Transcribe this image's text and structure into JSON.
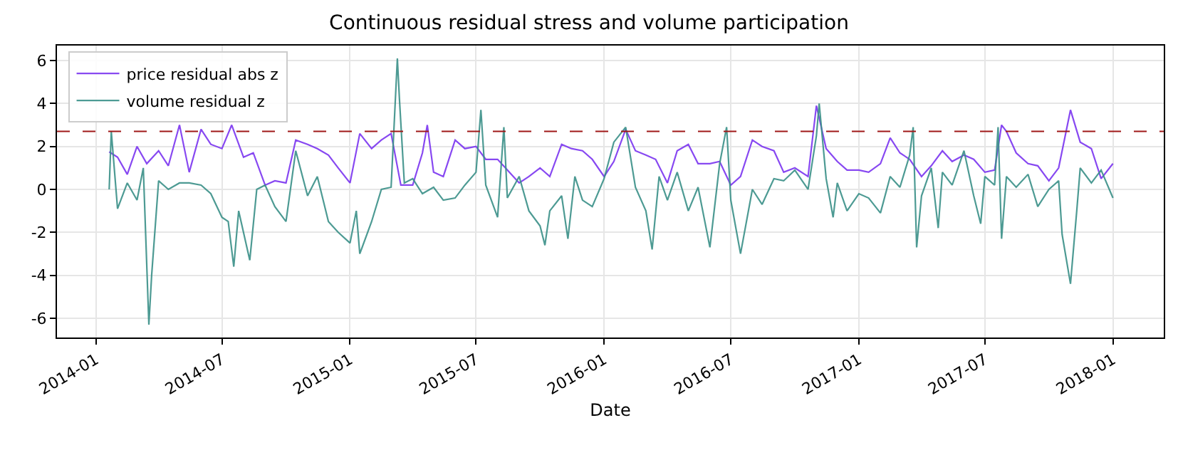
{
  "chart_data": {
    "type": "line",
    "title": "Continuous residual stress and volume participation",
    "xlabel": "Date",
    "xlim": [
      "2013-11-06",
      "2018-03-15"
    ],
    "xticks": [
      {
        "value": "2014-01-01",
        "label": "2014-01"
      },
      {
        "value": "2014-07-01",
        "label": "2014-07"
      },
      {
        "value": "2015-01-01",
        "label": "2015-01"
      },
      {
        "value": "2015-07-01",
        "label": "2015-07"
      },
      {
        "value": "2016-01-01",
        "label": "2016-01"
      },
      {
        "value": "2016-07-01",
        "label": "2016-07"
      },
      {
        "value": "2017-01-01",
        "label": "2017-01"
      },
      {
        "value": "2017-07-01",
        "label": "2017-07"
      },
      {
        "value": "2018-01-01",
        "label": "2018-01"
      }
    ],
    "ylim": [
      -6.9,
      6.7
    ],
    "yticks": [
      -6,
      -4,
      -2,
      0,
      2,
      4,
      6
    ],
    "grid": true,
    "legend": "top left",
    "line_style": "solid",
    "ref_lines": [
      {
        "axis": "y",
        "value": 2.7,
        "color": "#a01818",
        "line_style": "dashed"
      }
    ],
    "series": [
      {
        "name": "price residual abs z",
        "color": "#7b35f0",
        "x": [
          "2014-01-20",
          "2014-02-01",
          "2014-02-15",
          "2014-03-01",
          "2014-03-15",
          "2014-04-01",
          "2014-04-15",
          "2014-05-01",
          "2014-05-15",
          "2014-06-01",
          "2014-06-15",
          "2014-07-01",
          "2014-07-15",
          "2014-08-01",
          "2014-08-15",
          "2014-09-01",
          "2014-09-15",
          "2014-10-01",
          "2014-10-15",
          "2014-11-01",
          "2014-11-15",
          "2014-12-01",
          "2014-12-15",
          "2015-01-01",
          "2015-01-15",
          "2015-02-01",
          "2015-02-15",
          "2015-03-01",
          "2015-03-15",
          "2015-04-01",
          "2015-04-15",
          "2015-04-22",
          "2015-05-01",
          "2015-05-15",
          "2015-06-01",
          "2015-06-15",
          "2015-07-01",
          "2015-07-15",
          "2015-08-01",
          "2015-08-15",
          "2015-09-01",
          "2015-09-15",
          "2015-10-01",
          "2015-10-15",
          "2015-11-01",
          "2015-11-15",
          "2015-12-01",
          "2015-12-15",
          "2016-01-01",
          "2016-01-15",
          "2016-02-01",
          "2016-02-15",
          "2016-03-01",
          "2016-03-15",
          "2016-04-01",
          "2016-04-15",
          "2016-05-01",
          "2016-05-15",
          "2016-06-01",
          "2016-06-15",
          "2016-07-01",
          "2016-07-15",
          "2016-08-01",
          "2016-08-15",
          "2016-09-01",
          "2016-09-15",
          "2016-10-01",
          "2016-10-20",
          "2016-11-01",
          "2016-11-15",
          "2016-12-01",
          "2016-12-15",
          "2017-01-01",
          "2017-01-15",
          "2017-02-01",
          "2017-02-15",
          "2017-03-01",
          "2017-03-15",
          "2017-04-01",
          "2017-04-15",
          "2017-05-01",
          "2017-05-15",
          "2017-06-01",
          "2017-06-15",
          "2017-07-01",
          "2017-07-15",
          "2017-07-25",
          "2017-08-01",
          "2017-08-15",
          "2017-09-01",
          "2017-09-15",
          "2017-10-01",
          "2017-10-15",
          "2017-11-01",
          "2017-11-15",
          "2017-12-01",
          "2017-12-15",
          "2018-01-01"
        ],
        "values": [
          1.75,
          1.5,
          0.7,
          2.0,
          1.2,
          1.8,
          1.1,
          3.0,
          0.8,
          2.8,
          2.1,
          1.9,
          3.0,
          1.5,
          1.7,
          0.2,
          0.4,
          0.3,
          2.3,
          2.1,
          1.9,
          1.6,
          1.0,
          0.3,
          2.6,
          1.9,
          2.3,
          2.6,
          0.2,
          0.2,
          1.7,
          3.0,
          0.8,
          0.6,
          2.3,
          1.9,
          2.0,
          1.4,
          1.4,
          0.9,
          0.3,
          0.6,
          1.0,
          0.6,
          2.1,
          1.9,
          1.8,
          1.4,
          0.6,
          1.3,
          2.8,
          1.8,
          1.6,
          1.4,
          0.3,
          1.8,
          2.1,
          1.2,
          1.2,
          1.3,
          0.2,
          0.6,
          2.3,
          2.0,
          1.8,
          0.8,
          1.0,
          0.6,
          3.9,
          1.9,
          1.3,
          0.9,
          0.9,
          0.8,
          1.2,
          2.4,
          1.7,
          1.4,
          0.6,
          1.1,
          1.8,
          1.3,
          1.6,
          1.4,
          0.8,
          0.9,
          3.0,
          2.7,
          1.7,
          1.2,
          1.1,
          0.4,
          1.0,
          3.7,
          2.2,
          1.9,
          0.5,
          1.2
        ]
      },
      {
        "name": "volume residual z",
        "color": "#3a9088",
        "x": [
          "2014-01-20",
          "2014-01-23",
          "2014-02-01",
          "2014-02-15",
          "2014-03-01",
          "2014-03-10",
          "2014-03-18",
          "2014-03-22",
          "2014-04-01",
          "2014-04-15",
          "2014-05-01",
          "2014-05-15",
          "2014-06-01",
          "2014-06-15",
          "2014-07-01",
          "2014-07-10",
          "2014-07-18",
          "2014-07-25",
          "2014-08-10",
          "2014-08-20",
          "2014-09-01",
          "2014-09-15",
          "2014-10-01",
          "2014-10-15",
          "2014-11-01",
          "2014-11-15",
          "2014-12-01",
          "2014-12-15",
          "2015-01-01",
          "2015-01-10",
          "2015-01-15",
          "2015-02-01",
          "2015-02-15",
          "2015-03-01",
          "2015-03-10",
          "2015-03-13",
          "2015-03-20",
          "2015-04-01",
          "2015-04-15",
          "2015-05-01",
          "2015-05-15",
          "2015-06-01",
          "2015-06-15",
          "2015-07-01",
          "2015-07-08",
          "2015-07-15",
          "2015-08-01",
          "2015-08-10",
          "2015-08-15",
          "2015-09-01",
          "2015-09-15",
          "2015-10-01",
          "2015-10-08",
          "2015-10-15",
          "2015-11-01",
          "2015-11-10",
          "2015-11-20",
          "2015-12-01",
          "2015-12-15",
          "2016-01-01",
          "2016-01-15",
          "2016-02-01",
          "2016-02-15",
          "2016-03-01",
          "2016-03-10",
          "2016-03-20",
          "2016-04-01",
          "2016-04-15",
          "2016-05-01",
          "2016-05-15",
          "2016-06-01",
          "2016-06-15",
          "2016-06-25",
          "2016-07-01",
          "2016-07-15",
          "2016-08-01",
          "2016-08-15",
          "2016-09-01",
          "2016-09-15",
          "2016-10-01",
          "2016-10-20",
          "2016-11-01",
          "2016-11-05",
          "2016-11-15",
          "2016-11-25",
          "2016-12-01",
          "2016-12-15",
          "2017-01-01",
          "2017-01-15",
          "2017-02-01",
          "2017-02-15",
          "2017-03-01",
          "2017-03-15",
          "2017-03-20",
          "2017-03-25",
          "2017-04-01",
          "2017-04-15",
          "2017-04-25",
          "2017-05-01",
          "2017-05-15",
          "2017-06-01",
          "2017-06-15",
          "2017-06-25",
          "2017-07-01",
          "2017-07-15",
          "2017-07-20",
          "2017-07-25",
          "2017-08-01",
          "2017-08-15",
          "2017-09-01",
          "2017-09-15",
          "2017-10-01",
          "2017-10-15",
          "2017-10-20",
          "2017-11-01",
          "2017-11-10",
          "2017-11-15",
          "2017-12-01",
          "2017-12-15",
          "2018-01-01"
        ],
        "values": [
          0.0,
          2.7,
          -0.9,
          0.3,
          -0.5,
          1.0,
          -6.3,
          -4.0,
          0.4,
          0.0,
          0.3,
          0.3,
          0.2,
          -0.2,
          -1.3,
          -1.5,
          -3.6,
          -1.0,
          -3.3,
          0.0,
          0.2,
          -0.8,
          -1.5,
          1.8,
          -0.3,
          0.6,
          -1.5,
          -2.0,
          -2.5,
          -1.0,
          -3.0,
          -1.5,
          0.0,
          0.1,
          6.1,
          4.2,
          0.3,
          0.5,
          -0.2,
          0.1,
          -0.5,
          -0.4,
          0.2,
          0.8,
          3.7,
          0.2,
          -1.3,
          2.9,
          -0.4,
          0.6,
          -1.0,
          -1.7,
          -2.6,
          -1.0,
          -0.3,
          -2.3,
          0.6,
          -0.5,
          -0.8,
          0.5,
          2.2,
          2.9,
          0.1,
          -1.0,
          -2.8,
          0.6,
          -0.5,
          0.8,
          -1.0,
          0.1,
          -2.7,
          1.2,
          2.9,
          -0.5,
          -3.0,
          0.0,
          -0.7,
          0.5,
          0.4,
          0.9,
          0.0,
          2.5,
          4.0,
          0.5,
          -1.3,
          0.3,
          -1.0,
          -0.2,
          -0.4,
          -1.1,
          0.6,
          0.1,
          1.6,
          2.9,
          -2.7,
          -0.3,
          1.0,
          -1.8,
          0.8,
          0.2,
          1.8,
          -0.3,
          -1.6,
          0.6,
          0.2,
          2.9,
          -2.3,
          0.6,
          0.1,
          0.7,
          -0.8,
          0.0,
          0.4,
          -2.1,
          -4.4,
          -1.0,
          1.0,
          0.3,
          0.9,
          -0.4
        ]
      }
    ]
  }
}
